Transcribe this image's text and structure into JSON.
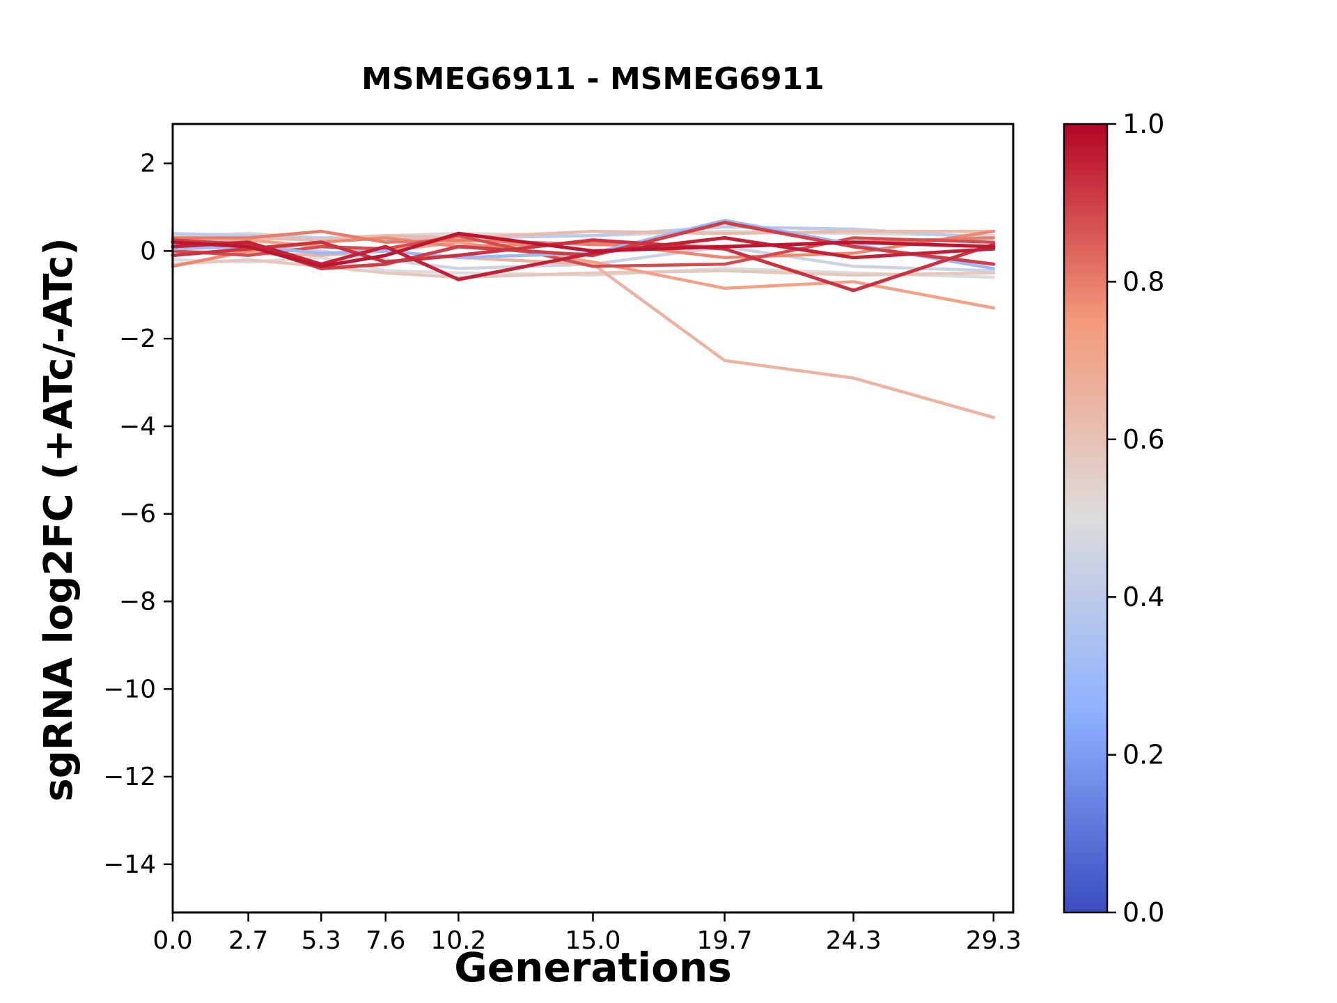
{
  "chart_data": {
    "type": "line",
    "title": "MSMEG6911 - MSMEG6911",
    "xlabel": "Generations",
    "ylabel": "sgRNA log2FC (+ATc/-ATc)",
    "x": [
      0.0,
      2.7,
      5.3,
      7.6,
      10.2,
      15.0,
      19.7,
      24.3,
      29.3
    ],
    "xlim": [
      0,
      30
    ],
    "ylim": [
      -15.1,
      2.9
    ],
    "xticks": [
      0.0,
      2.7,
      5.3,
      7.6,
      10.2,
      15.0,
      19.7,
      24.3,
      29.3
    ],
    "xtick_labels": [
      "0.0",
      "2.7",
      "5.3",
      "7.6",
      "10.2",
      "15.0",
      "19.7",
      "24.3",
      "29.3"
    ],
    "yticks": [
      2,
      0,
      -2,
      -4,
      -6,
      -8,
      -10,
      -12,
      -14
    ],
    "ytick_labels": [
      "2",
      "0",
      "−2",
      "−4",
      "−6",
      "−8",
      "−10",
      "−12",
      "−14"
    ],
    "grid": false,
    "legend": "none",
    "colormap": "coolwarm",
    "colorbar": {
      "min": 0.0,
      "max": 1.0,
      "ticks": [
        0.0,
        0.2,
        0.4,
        0.6,
        0.8,
        1.0
      ],
      "tick_labels": [
        "0.0",
        "0.2",
        "0.4",
        "0.6",
        "0.8",
        "1.0"
      ],
      "color_low": "#3b4cc0",
      "color_mid": "#dddcdc",
      "color_high": "#b40426"
    },
    "series": [
      {
        "color_value": 0.52,
        "linewidth": 4.5,
        "y": [
          0.35,
          0.4,
          0.3,
          0.35,
          0.4,
          0.35,
          0.45,
          0.4,
          0.35
        ]
      },
      {
        "color_value": 0.45,
        "linewidth": 4.5,
        "y": [
          0.15,
          0.1,
          0.0,
          -0.2,
          -0.4,
          -0.3,
          0.1,
          -0.35,
          -0.45
        ]
      },
      {
        "color_value": 0.4,
        "linewidth": 4.5,
        "y": [
          0.4,
          0.35,
          0.3,
          0.25,
          0.3,
          0.35,
          0.55,
          0.5,
          0.3
        ]
      },
      {
        "color_value": 0.5,
        "linewidth": 4.5,
        "y": [
          -0.2,
          -0.25,
          -0.15,
          -0.45,
          -0.5,
          -0.55,
          -0.4,
          -0.5,
          -0.6
        ]
      },
      {
        "color_value": 0.58,
        "linewidth": 4.5,
        "y": [
          -0.3,
          -0.2,
          -0.35,
          -0.5,
          -0.6,
          -0.5,
          -0.45,
          -0.55,
          -0.5
        ]
      },
      {
        "color_value": 0.62,
        "linewidth": 4.5,
        "y": [
          0.2,
          0.3,
          0.25,
          0.35,
          0.3,
          0.45,
          0.4,
          0.45,
          0.45
        ]
      },
      {
        "color_value": 0.65,
        "linewidth": 4.5,
        "y": [
          0.0,
          -0.05,
          -0.1,
          0.0,
          -0.15,
          -0.3,
          -2.5,
          -2.9,
          -3.8
        ]
      },
      {
        "color_value": 0.72,
        "linewidth": 4.5,
        "y": [
          0.1,
          0.25,
          0.1,
          0.0,
          0.2,
          -0.25,
          -0.85,
          -0.7,
          -1.3
        ]
      },
      {
        "color_value": 0.78,
        "linewidth": 4.5,
        "y": [
          -0.35,
          0.0,
          0.2,
          0.3,
          0.1,
          0.2,
          -0.15,
          -0.05,
          0.45
        ]
      },
      {
        "color_value": 0.8,
        "linewidth": 4.5,
        "y": [
          0.3,
          0.3,
          0.45,
          0.2,
          0.25,
          0.15,
          0.1,
          0.2,
          0.3
        ]
      },
      {
        "color_value": 0.88,
        "linewidth": 4.5,
        "y": [
          0.0,
          -0.1,
          0.1,
          0.05,
          0.35,
          -0.35,
          -0.3,
          0.3,
          0.2
        ]
      },
      {
        "color_value": 0.3,
        "linewidth": 4.5,
        "y": [
          0.05,
          0.1,
          -0.05,
          0.0,
          -0.15,
          -0.05,
          0.7,
          0.15,
          -0.4
        ]
      },
      {
        "color_value": 0.9,
        "linewidth": 5,
        "y": [
          0.25,
          0.15,
          -0.4,
          -0.3,
          0.1,
          -0.1,
          0.65,
          0.1,
          -0.3
        ]
      },
      {
        "color_value": 0.92,
        "linewidth": 5,
        "y": [
          -0.1,
          0.05,
          0.2,
          -0.25,
          -0.1,
          0.25,
          0.05,
          -0.9,
          0.15
        ]
      },
      {
        "color_value": 0.95,
        "linewidth": 5,
        "y": [
          0.1,
          0.2,
          -0.3,
          0.1,
          -0.65,
          -0.05,
          0.3,
          -0.15,
          0.05
        ]
      },
      {
        "color_value": 0.97,
        "linewidth": 5,
        "y": [
          0.2,
          0.1,
          -0.35,
          -0.1,
          0.4,
          0.0,
          0.1,
          0.2,
          0.1
        ]
      }
    ]
  }
}
